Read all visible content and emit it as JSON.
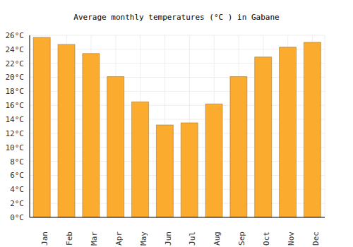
{
  "chart_data": {
    "type": "bar",
    "title": "Average monthly temperatures (°C ) in Gabane",
    "categories": [
      "Jan",
      "Feb",
      "Mar",
      "Apr",
      "May",
      "Jun",
      "Jul",
      "Aug",
      "Sep",
      "Oct",
      "Nov",
      "Dec"
    ],
    "values": [
      25.7,
      24.7,
      23.4,
      20.1,
      16.5,
      13.2,
      13.5,
      16.2,
      20.1,
      22.9,
      24.3,
      25.0
    ],
    "color": "#fbab2e",
    "ylim": [
      0,
      26
    ],
    "yticks": [
      {
        "value": 0,
        "label": "0°C"
      },
      {
        "value": 2,
        "label": "2°C"
      },
      {
        "value": 4,
        "label": "4°C"
      },
      {
        "value": 6,
        "label": "6°C"
      },
      {
        "value": 8,
        "label": "8°C"
      },
      {
        "value": 10,
        "label": "10°C"
      },
      {
        "value": 12,
        "label": "12°C"
      },
      {
        "value": 14,
        "label": "14°C"
      },
      {
        "value": 16,
        "label": "16°C"
      },
      {
        "value": 18,
        "label": "18°C"
      },
      {
        "value": 20,
        "label": "20°C"
      },
      {
        "value": 22,
        "label": "22°C"
      },
      {
        "value": 24,
        "label": "24°C"
      },
      {
        "value": 26,
        "label": "26°C"
      }
    ],
    "grid": true
  }
}
